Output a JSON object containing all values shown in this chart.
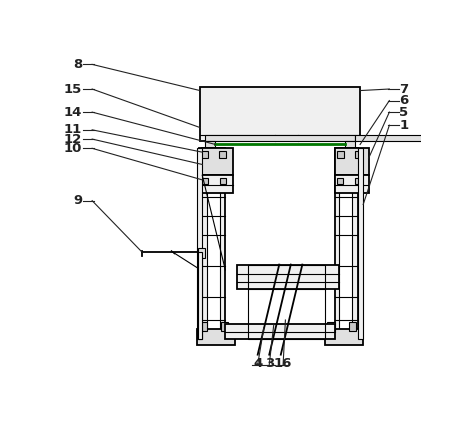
{
  "bg_color": "#ffffff",
  "lc": "#000000",
  "fc_light": "#f0f0f0",
  "fc_med": "#e0e0e0",
  "fc_dark": "#c8c8c8",
  "fc_white": "#ffffff",
  "green": "#007700",
  "ann_color": "#222222",
  "figsize": [
    4.69,
    4.21
  ],
  "dpi": 100
}
